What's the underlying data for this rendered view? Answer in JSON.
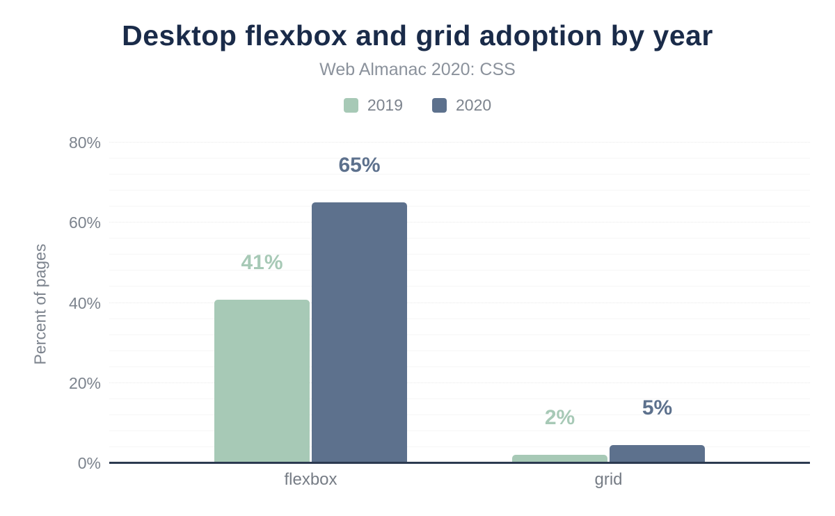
{
  "chart_data": {
    "type": "bar",
    "title": "Desktop flexbox and grid adoption by year",
    "subtitle": "Web Almanac 2020: CSS",
    "categories": [
      "flexbox",
      "grid"
    ],
    "series": [
      {
        "name": "2019",
        "color": "#a7c9b6",
        "values": [
          40.7,
          2.0
        ],
        "data_labels": [
          "41%",
          "2%"
        ]
      },
      {
        "name": "2020",
        "color": "#5d718d",
        "values": [
          65.0,
          4.5
        ],
        "data_labels": [
          "65%",
          "5%"
        ]
      }
    ],
    "xlabel": "",
    "ylabel": "Percent of pages",
    "ylim": [
      0,
      80
    ],
    "yticks": [
      {
        "value": 0,
        "label": "0%"
      },
      {
        "value": 20,
        "label": "20%"
      },
      {
        "value": 40,
        "label": "40%"
      },
      {
        "value": 60,
        "label": "60%"
      },
      {
        "value": 80,
        "label": "80%"
      }
    ],
    "grid": {
      "major_step": 20,
      "minor_step": 4,
      "visible": true
    },
    "legend_position": "top"
  },
  "colors": {
    "title": "#1a2b49",
    "subtitle": "#8b929c",
    "legend_text": "#7d848e",
    "tick_text": "#7c838d",
    "category_text": "#767c85",
    "axis_line": "#2c3a50",
    "background": "#ffffff"
  }
}
